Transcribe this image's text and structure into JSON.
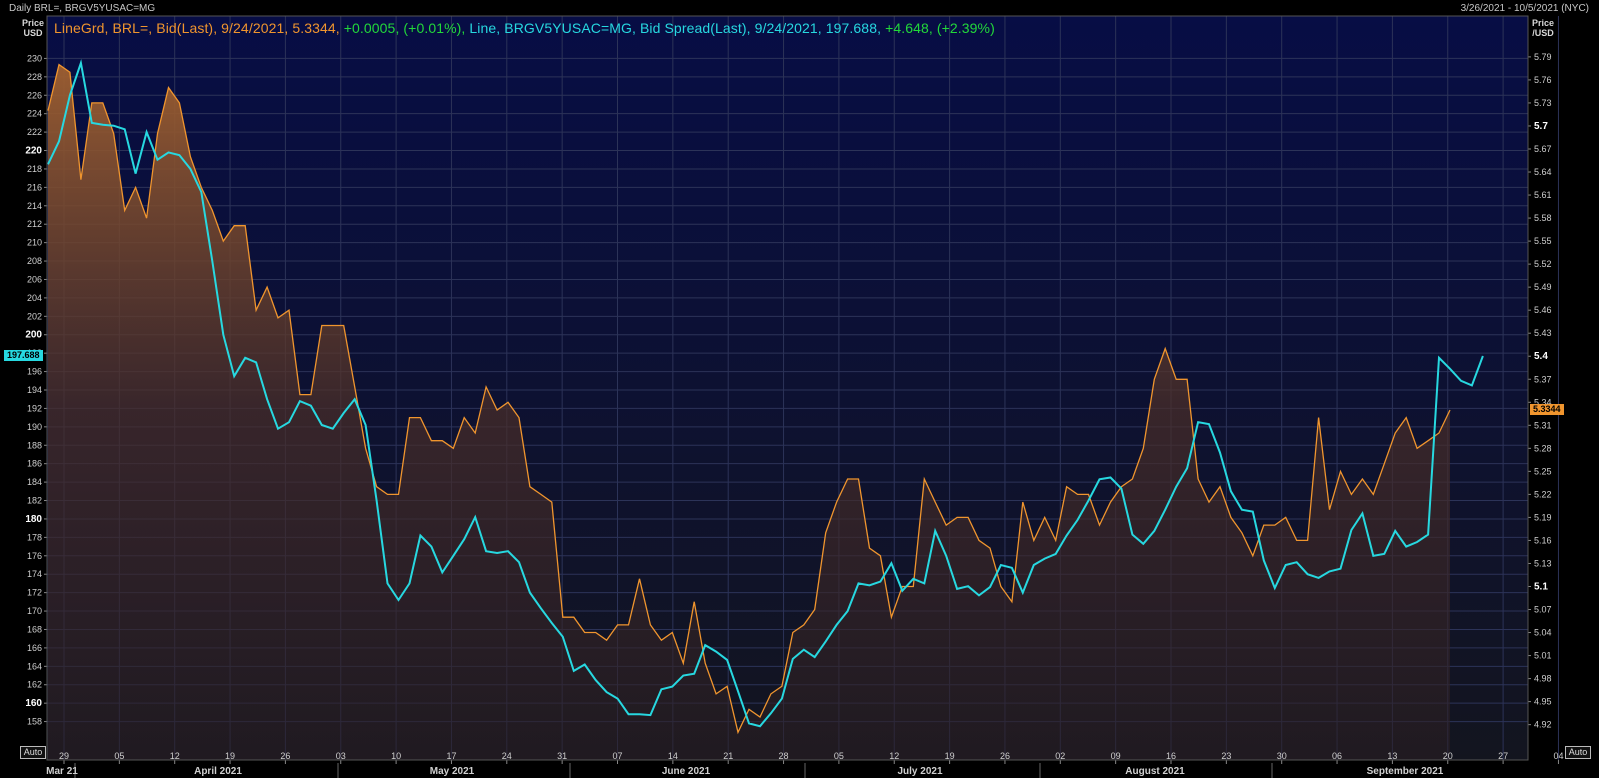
{
  "window": {
    "title": "Daily BRL=, BRGV5YUSAC=MG",
    "range": "3/26/2021 - 10/5/2021 (NYC)"
  },
  "axes": {
    "left_label": [
      "Price",
      "USD"
    ],
    "right_label": [
      "Price",
      "/USD"
    ],
    "auto_label": "Auto"
  },
  "legend": {
    "series1": {
      "text": "LineGrd, BRL=, Bid(Last), 9/24/2021, 5.3344,",
      "change": "+0.0005, (+0.01%),",
      "color": "#f0952e"
    },
    "series2": {
      "text": "Line, BRGV5YUSAC=MG, Bid Spread(Last), 9/24/2021, 197.688,",
      "change": "+4.648, (+2.39%)",
      "color": "#27d8e0"
    }
  },
  "chart_data": {
    "type": "line",
    "x_ticks": [
      "29",
      "05",
      "12",
      "19",
      "26",
      "03",
      "10",
      "17",
      "24",
      "31",
      "07",
      "14",
      "21",
      "28",
      "05",
      "12",
      "19",
      "26",
      "02",
      "09",
      "16",
      "23",
      "30",
      "06",
      "13",
      "20",
      "27",
      "04"
    ],
    "months": [
      "Mar 21",
      "April 2021",
      "May 2021",
      "June 2021",
      "July 2021",
      "August 2021",
      "September 2021"
    ],
    "left_axis": {
      "ylim": [
        156,
        232
      ],
      "ticks": [
        158,
        160,
        162,
        164,
        166,
        168,
        170,
        172,
        174,
        176,
        178,
        180,
        182,
        184,
        186,
        188,
        190,
        192,
        194,
        196,
        198,
        200,
        202,
        204,
        206,
        208,
        210,
        212,
        214,
        216,
        218,
        220,
        222,
        224,
        226,
        228,
        230
      ],
      "bold_ticks": [
        160,
        180,
        200,
        220
      ],
      "last_value": "197.688"
    },
    "right_axis": {
      "ylim": [
        4.9,
        5.812
      ],
      "ticks": [
        "4.92",
        "4.95",
        "4.98",
        "5.01",
        "5.04",
        "5.07",
        "5.1",
        "5.13",
        "5.16",
        "5.19",
        "5.22",
        "5.25",
        "5.28",
        "5.31",
        "5.34",
        "5.37",
        "5.4",
        "5.43",
        "5.46",
        "5.49",
        "5.52",
        "5.55",
        "5.58",
        "5.61",
        "5.64",
        "5.67",
        "5.7",
        "5.73",
        "5.76",
        "5.79"
      ],
      "bold_ticks": [
        "5.1",
        "5.4",
        "5.7"
      ],
      "last_value": "5.3344"
    },
    "series": [
      {
        "name": "BRL=",
        "axis": "right",
        "color": "#f0952e",
        "values": [
          5.72,
          5.78,
          5.77,
          5.63,
          5.73,
          5.73,
          5.69,
          5.59,
          5.62,
          5.58,
          5.69,
          5.75,
          5.73,
          5.66,
          5.62,
          5.59,
          5.55,
          5.57,
          5.57,
          5.46,
          5.49,
          5.45,
          5.46,
          5.35,
          5.35,
          5.44,
          5.44,
          5.44,
          5.36,
          5.28,
          5.23,
          5.22,
          5.22,
          5.32,
          5.32,
          5.29,
          5.29,
          5.28,
          5.32,
          5.3,
          5.36,
          5.33,
          5.34,
          5.32,
          5.23,
          5.22,
          5.21,
          5.06,
          5.06,
          5.04,
          5.04,
          5.03,
          5.05,
          5.05,
          5.11,
          5.05,
          5.03,
          5.04,
          5.0,
          5.08,
          5.0,
          4.96,
          4.97,
          4.91,
          4.94,
          4.93,
          4.96,
          4.97,
          5.04,
          5.05,
          5.07,
          5.17,
          5.21,
          5.24,
          5.24,
          5.15,
          5.14,
          5.06,
          5.1,
          5.1,
          5.24,
          5.21,
          5.18,
          5.19,
          5.19,
          5.16,
          5.15,
          5.1,
          5.08,
          5.21,
          5.16,
          5.19,
          5.16,
          5.23,
          5.22,
          5.22,
          5.18,
          5.21,
          5.23,
          5.24,
          5.28,
          5.37,
          5.41,
          5.37,
          5.37,
          5.24,
          5.21,
          5.23,
          5.19,
          5.17,
          5.14,
          5.18,
          5.18,
          5.19,
          5.16,
          5.16,
          5.32,
          5.2,
          5.25,
          5.22,
          5.24,
          5.22,
          5.26,
          5.3,
          5.32,
          5.28,
          5.29,
          5.3,
          5.33
        ]
      },
      {
        "name": "BRGV5YUSAC=MG",
        "axis": "left",
        "color": "#27d8e0",
        "values": [
          218.5,
          221,
          226,
          229.5,
          223,
          222.8,
          222.7,
          222.3,
          217.5,
          222,
          219,
          219.8,
          219.5,
          218,
          215.5,
          208,
          200,
          195.5,
          197.5,
          197,
          193,
          189.8,
          190.5,
          192.8,
          192.3,
          190.2,
          189.8,
          191.5,
          193,
          190.2,
          182,
          173,
          171.2,
          173,
          178.2,
          177,
          174.2,
          176,
          177.8,
          180.2,
          176.5,
          176.3,
          176.5,
          175.3,
          172,
          170.3,
          168.7,
          167.2,
          163.5,
          164.2,
          162.5,
          161.2,
          160.5,
          158.8,
          158.8,
          158.7,
          161.5,
          161.8,
          163,
          163.2,
          166.3,
          165.6,
          164.7,
          161.3,
          157.8,
          157.5,
          158.9,
          160.5,
          164.8,
          165.8,
          165,
          166.7,
          168.5,
          170,
          173,
          172.8,
          173.2,
          175.2,
          172.2,
          173.5,
          173,
          178.7,
          176,
          172.4,
          172.7,
          171.7,
          172.6,
          175,
          174.7,
          172,
          175,
          175.7,
          176.2,
          178.2,
          179.9,
          182,
          184.3,
          184.5,
          183.3,
          178.3,
          177.3,
          178.7,
          181,
          183.5,
          185.5,
          190.5,
          190.3,
          187.2,
          183,
          181,
          180.8,
          175.5,
          172.5,
          175,
          175.3,
          174,
          173.6,
          174.3,
          174.6,
          178.8,
          180.6,
          176,
          176.2,
          178.7,
          177,
          177.5,
          178.3,
          197.5,
          196.3,
          195,
          194.5,
          197.688
        ]
      }
    ],
    "legend_position": "top-left",
    "grid": true
  }
}
